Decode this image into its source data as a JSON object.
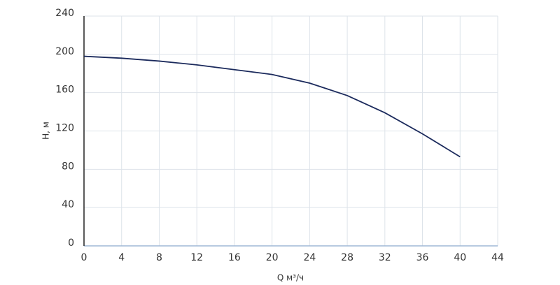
{
  "chart_data": {
    "type": "line",
    "x_label": "Q м³/ч",
    "y_label": "H, м",
    "x": [
      0,
      4,
      8,
      12,
      16,
      20,
      24,
      28,
      32,
      36,
      40
    ],
    "series": [
      {
        "color": "#1b2a5c",
        "values": [
          198,
          196,
          193,
          189,
          184,
          179,
          170,
          157,
          139,
          117,
          93
        ]
      }
    ],
    "xlim": [
      0,
      44
    ],
    "xticks": [
      0,
      4,
      8,
      12,
      16,
      20,
      24,
      28,
      32,
      36,
      40,
      44
    ],
    "ylim": [
      0,
      240
    ],
    "yticks": [
      0,
      40,
      80,
      120,
      160,
      200,
      240
    ],
    "grid": true
  }
}
